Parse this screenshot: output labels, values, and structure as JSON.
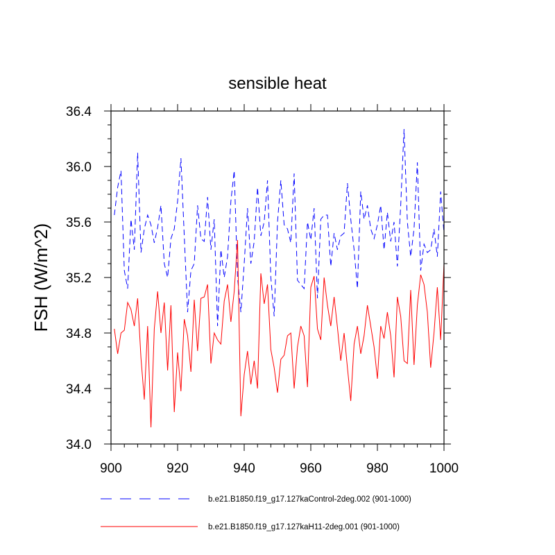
{
  "chart_data": {
    "type": "line",
    "title": "sensible heat",
    "xlabel": "",
    "ylabel": "FSH  (W/m^2)",
    "xlim": [
      900,
      1000
    ],
    "ylim": [
      34.0,
      36.4
    ],
    "x_ticks": [
      900,
      920,
      940,
      960,
      980,
      1000
    ],
    "y_ticks": [
      "34.0",
      "34.4",
      "34.8",
      "35.2",
      "35.6",
      "36.0",
      "36.4"
    ],
    "x": [
      901,
      902,
      903,
      904,
      905,
      906,
      907,
      908,
      909,
      910,
      911,
      912,
      913,
      914,
      915,
      916,
      917,
      918,
      919,
      920,
      921,
      922,
      923,
      924,
      925,
      926,
      927,
      928,
      929,
      930,
      931,
      932,
      933,
      934,
      935,
      936,
      937,
      938,
      939,
      940,
      941,
      942,
      943,
      944,
      945,
      946,
      947,
      948,
      949,
      950,
      951,
      952,
      953,
      954,
      955,
      956,
      957,
      958,
      959,
      960,
      961,
      962,
      963,
      964,
      965,
      966,
      967,
      968,
      969,
      970,
      971,
      972,
      973,
      974,
      975,
      976,
      977,
      978,
      979,
      980,
      981,
      982,
      983,
      984,
      985,
      986,
      987,
      988,
      989,
      990,
      991,
      992,
      993,
      994,
      995,
      996,
      997,
      998,
      999,
      1000
    ],
    "series": [
      {
        "name": "b.e21.B1850.f19_g17.127kaControl-2deg.002 (901-1000)",
        "color": "#0000ff",
        "dash": "dashed",
        "values": [
          35.65,
          35.85,
          35.97,
          35.25,
          35.12,
          35.62,
          35.4,
          36.1,
          35.38,
          35.55,
          35.65,
          35.58,
          35.45,
          35.56,
          35.72,
          35.3,
          35.2,
          35.48,
          35.55,
          35.75,
          36.06,
          35.5,
          34.95,
          35.25,
          35.3,
          35.72,
          35.48,
          35.46,
          35.78,
          35.4,
          35.62,
          34.85,
          35.4,
          35.2,
          35.35,
          35.75,
          35.97,
          35.2,
          34.95,
          35.3,
          35.7,
          35.3,
          35.46,
          35.85,
          35.5,
          35.6,
          35.9,
          35.2,
          34.92,
          35.6,
          35.9,
          35.58,
          35.55,
          35.45,
          35.95,
          35.18,
          35.15,
          35.12,
          35.6,
          35.47,
          35.7,
          35.05,
          35.62,
          35.65,
          35.65,
          35.28,
          35.52,
          35.4,
          35.5,
          35.52,
          35.88,
          35.62,
          35.4,
          35.12,
          35.82,
          35.62,
          35.72,
          35.55,
          35.48,
          35.58,
          35.72,
          35.4,
          35.67,
          35.46,
          35.6,
          35.28,
          35.72,
          36.27,
          35.6,
          35.35,
          35.55,
          36.03,
          35.25,
          35.44,
          35.38,
          35.4,
          35.55,
          35.35,
          35.82,
          35.52
        ]
      },
      {
        "name": "b.e21.B1850.f19_g17.127kaH11-2deg.001 (901-1000)",
        "color": "#ff0000",
        "dash": "solid",
        "values": [
          34.83,
          34.65,
          34.8,
          34.82,
          35.02,
          34.97,
          34.85,
          35.05,
          34.62,
          34.32,
          34.85,
          34.12,
          34.83,
          35.1,
          34.8,
          35.02,
          34.53,
          35.0,
          34.23,
          34.66,
          34.38,
          34.9,
          34.78,
          34.52,
          35.04,
          34.67,
          35.05,
          35.06,
          35.15,
          34.58,
          34.8,
          34.75,
          34.72,
          35.03,
          35.15,
          34.88,
          35.1,
          35.47,
          34.2,
          34.5,
          34.67,
          34.43,
          34.6,
          34.4,
          35.23,
          35.01,
          35.15,
          34.68,
          34.55,
          34.37,
          34.61,
          34.64,
          34.78,
          34.8,
          34.4,
          34.7,
          34.85,
          34.78,
          34.41,
          35.13,
          35.21,
          34.83,
          34.75,
          35.2,
          35.0,
          34.85,
          35.06,
          34.84,
          34.6,
          34.8,
          34.55,
          34.31,
          34.72,
          34.85,
          34.65,
          34.78,
          35.0,
          34.85,
          34.7,
          34.47,
          34.85,
          34.76,
          34.95,
          34.78,
          34.48,
          35.06,
          34.92,
          34.6,
          34.58,
          35.11,
          34.57,
          35.0,
          35.22,
          35.15,
          34.95,
          34.55,
          34.8,
          35.13,
          34.75,
          35.3
        ]
      }
    ],
    "legend": {
      "position": "bottom",
      "entries": [
        "b.e21.B1850.f19_g17.127kaControl-2deg.002 (901-1000)",
        "b.e21.B1850.f19_g17.127kaH11-2deg.001 (901-1000)"
      ]
    },
    "grid": false
  }
}
